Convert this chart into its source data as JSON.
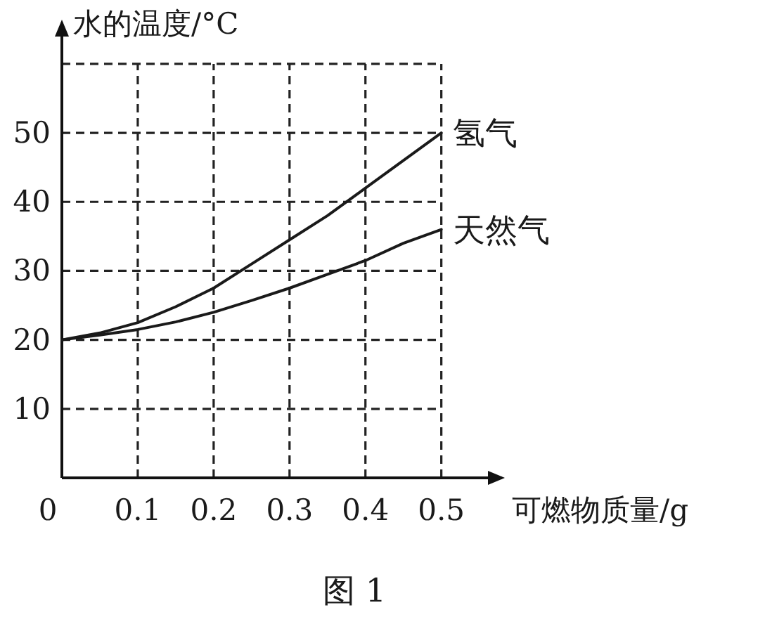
{
  "chart_data": {
    "type": "line",
    "ylabel": "水的温度/°C",
    "xlabel": "可燃物质量/g",
    "x": [
      0,
      0.05,
      0.1,
      0.15,
      0.2,
      0.25,
      0.3,
      0.35,
      0.4,
      0.45,
      0.5
    ],
    "series": [
      {
        "name": "氢气",
        "color": "#1a1a1a",
        "values": [
          20,
          21,
          22.5,
          24.8,
          27.5,
          31,
          34.5,
          38,
          42,
          46,
          50
        ]
      },
      {
        "name": "天然气",
        "color": "#1a1a1a",
        "values": [
          20,
          20.7,
          21.5,
          22.6,
          24,
          25.7,
          27.5,
          29.5,
          31.5,
          34,
          36
        ]
      }
    ],
    "xlim": [
      0,
      0.58
    ],
    "ylim": [
      0,
      66
    ],
    "xticks": [
      {
        "value": 0,
        "label": "0"
      },
      0.1,
      0.2,
      0.3,
      0.4,
      0.5
    ],
    "yticks": [
      10,
      20,
      30,
      40,
      50,
      {
        "value": 60,
        "label": null
      }
    ],
    "grid": true,
    "legend": false,
    "line_style": "solid",
    "marker": "none",
    "annotations": [
      "图 1"
    ]
  }
}
